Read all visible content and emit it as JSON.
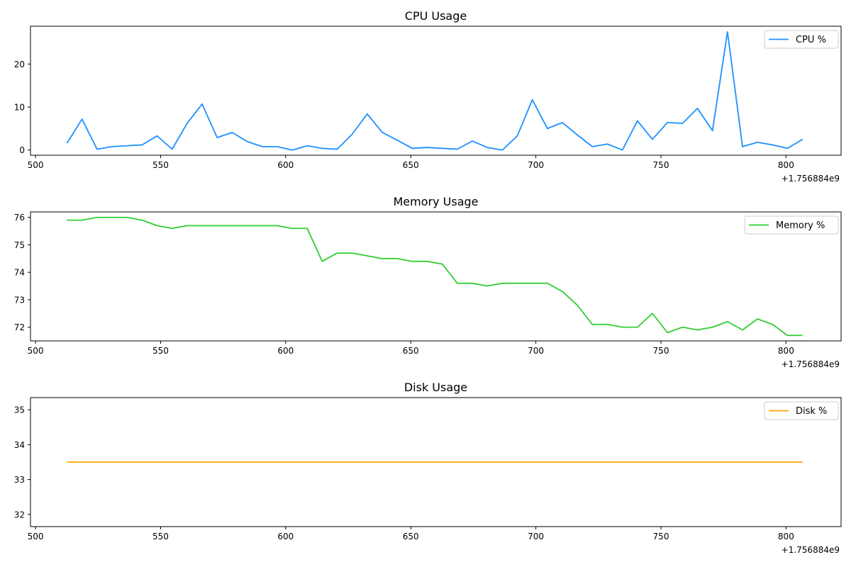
{
  "chart_data": [
    {
      "type": "line",
      "title": "CPU Usage",
      "x_offset_label": "+1.756884e9",
      "xlim": [
        498,
        822
      ],
      "ylim": [
        -1.2,
        28.8
      ],
      "xticks": [
        500,
        550,
        600,
        650,
        700,
        750,
        800
      ],
      "yticks": [
        0,
        10,
        20
      ],
      "legend_position": "top-right",
      "series": [
        {
          "name": "CPU %",
          "color": "#1e90ff",
          "x": [
            512.6,
            518.6,
            524.6,
            530.6,
            536.6,
            542.6,
            548.6,
            554.6,
            560.6,
            566.6,
            572.6,
            578.6,
            584.6,
            590.6,
            596.6,
            602.6,
            608.6,
            614.6,
            620.6,
            626.6,
            632.6,
            638.6,
            644.6,
            650.6,
            656.6,
            662.6,
            668.6,
            674.6,
            680.6,
            686.6,
            692.6,
            698.6,
            704.6,
            710.6,
            716.6,
            722.6,
            728.6,
            734.6,
            740.6,
            746.6,
            752.6,
            758.6,
            764.6,
            770.6,
            776.6,
            782.6,
            788.6,
            794.6,
            800.6,
            806.6
          ],
          "y": [
            1.6,
            7.2,
            0.2,
            0.8,
            1.0,
            1.2,
            3.3,
            0.2,
            6.2,
            10.7,
            2.9,
            4.1,
            2.0,
            0.8,
            0.8,
            0.0,
            1.0,
            0.4,
            0.2,
            3.7,
            8.4,
            4.1,
            2.3,
            0.4,
            0.6,
            0.4,
            0.2,
            2.1,
            0.6,
            0.0,
            3.3,
            11.7,
            5.0,
            6.4,
            3.5,
            0.8,
            1.4,
            0.0,
            6.8,
            2.5,
            6.4,
            6.2,
            9.7,
            4.5,
            27.5,
            0.8,
            1.8,
            1.2,
            0.4,
            2.5
          ]
        }
      ]
    },
    {
      "type": "line",
      "title": "Memory Usage",
      "x_offset_label": "+1.756884e9",
      "xlim": [
        498,
        822
      ],
      "ylim": [
        71.5,
        76.2
      ],
      "xticks": [
        500,
        550,
        600,
        650,
        700,
        750,
        800
      ],
      "yticks": [
        72,
        73,
        74,
        75,
        76
      ],
      "legend_position": "top-right",
      "series": [
        {
          "name": "Memory %",
          "color": "#32cd32",
          "x": [
            512.6,
            518.6,
            524.6,
            530.6,
            536.6,
            542.6,
            548.6,
            554.6,
            560.6,
            566.6,
            572.6,
            578.6,
            584.6,
            590.6,
            596.6,
            602.6,
            608.6,
            614.6,
            620.6,
            626.6,
            632.6,
            638.6,
            644.6,
            650.6,
            656.6,
            662.6,
            668.6,
            674.6,
            680.6,
            686.6,
            692.6,
            698.6,
            704.6,
            710.6,
            716.6,
            722.6,
            728.6,
            734.6,
            740.6,
            746.6,
            752.6,
            758.6,
            764.6,
            770.6,
            776.6,
            782.6,
            788.6,
            794.6,
            800.6,
            806.6
          ],
          "y": [
            75.9,
            75.9,
            76.0,
            76.0,
            76.0,
            75.9,
            75.7,
            75.6,
            75.7,
            75.7,
            75.7,
            75.7,
            75.7,
            75.7,
            75.7,
            75.6,
            75.6,
            74.4,
            74.7,
            74.7,
            74.6,
            74.5,
            74.5,
            74.4,
            74.4,
            74.3,
            73.6,
            73.6,
            73.5,
            73.6,
            73.6,
            73.6,
            73.6,
            73.3,
            72.8,
            72.1,
            72.1,
            72.0,
            72.0,
            72.5,
            71.8,
            72.0,
            71.9,
            72.0,
            72.2,
            71.9,
            72.3,
            72.1,
            71.7,
            71.7
          ]
        }
      ]
    },
    {
      "type": "line",
      "title": "Disk Usage",
      "x_offset_label": "+1.756884e9",
      "xlim": [
        498,
        822
      ],
      "ylim": [
        31.65,
        35.35
      ],
      "xticks": [
        500,
        550,
        600,
        650,
        700,
        750,
        800
      ],
      "yticks": [
        32,
        33,
        34,
        35
      ],
      "legend_position": "top-right",
      "series": [
        {
          "name": "Disk %",
          "color": "#ffa500",
          "x": [
            512.6,
            806.6
          ],
          "y": [
            33.5,
            33.5
          ]
        }
      ]
    }
  ]
}
